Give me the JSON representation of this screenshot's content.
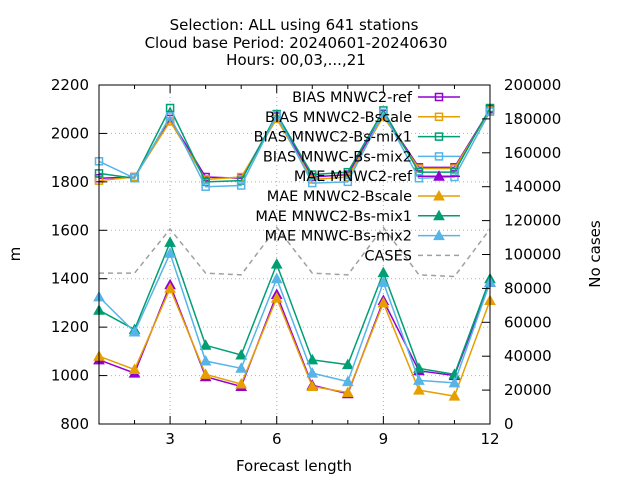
{
  "chart_data": {
    "type": "line",
    "title_lines": [
      "Selection: ALL using   641 stations",
      "Cloud base   Period: 20240601-20240630",
      "Hours: 00,03,...,21"
    ],
    "xlabel": "Forecast length",
    "ylabel": "m",
    "y2label": "No cases",
    "xlim": [
      1,
      12
    ],
    "ylim": [
      800,
      2200
    ],
    "y2lim": [
      0,
      200000
    ],
    "x_ticks": [
      3,
      6,
      9,
      12
    ],
    "y_ticks": [
      800,
      1000,
      1200,
      1400,
      1600,
      1800,
      2000,
      2200
    ],
    "y2_ticks": [
      0,
      20000,
      40000,
      60000,
      80000,
      100000,
      120000,
      140000,
      160000,
      180000,
      200000
    ],
    "grid": true,
    "legend_position": "top-right",
    "x": [
      1,
      2,
      3,
      4,
      5,
      6,
      7,
      8,
      9,
      10,
      11,
      12
    ],
    "series": [
      {
        "name": "BIAS MNWC2-ref",
        "axis": "y1",
        "color": "#9400d3",
        "marker": "square-open",
        "values": [
          1815,
          1820,
          2060,
          1820,
          1815,
          2070,
          1820,
          1830,
          2080,
          1860,
          1860,
          2100
        ]
      },
      {
        "name": "BIAS MNWC2-Bscale",
        "axis": "y1",
        "color": "#e69f00",
        "marker": "square-open",
        "values": [
          1805,
          1820,
          2050,
          1810,
          1820,
          2060,
          1810,
          1820,
          2070,
          1855,
          1855,
          2095
        ]
      },
      {
        "name": "BIAS MNWC2-Bs-mix1",
        "axis": "y1",
        "color": "#009e73",
        "marker": "square-open",
        "values": [
          1835,
          1815,
          2105,
          1800,
          1805,
          2080,
          1830,
          1840,
          2095,
          1840,
          1840,
          2105
        ]
      },
      {
        "name": "BIAS MNWC-Bs-mix2",
        "axis": "y1",
        "color": "#56b4e9",
        "marker": "square-open",
        "values": [
          1885,
          1815,
          2070,
          1780,
          1785,
          2075,
          1795,
          1800,
          2085,
          1815,
          1820,
          2090
        ]
      },
      {
        "name": "MAE MNWC2-ref",
        "axis": "y1",
        "color": "#9400d3",
        "marker": "triangle",
        "values": [
          1065,
          1010,
          1375,
          995,
          955,
          1335,
          960,
          925,
          1310,
          1020,
          1000,
          1385
        ]
      },
      {
        "name": "MAE MNWC2-Bscale",
        "axis": "y1",
        "color": "#e69f00",
        "marker": "triangle",
        "values": [
          1080,
          1025,
          1360,
          1005,
          965,
          1320,
          955,
          930,
          1300,
          940,
          915,
          1310
        ]
      },
      {
        "name": "MAE MNWC2-Bs-mix1",
        "axis": "y1",
        "color": "#009e73",
        "marker": "triangle",
        "values": [
          1270,
          1190,
          1550,
          1125,
          1085,
          1460,
          1065,
          1045,
          1425,
          1030,
          1005,
          1400
        ]
      },
      {
        "name": "MAE MNWC-Bs-mix2",
        "axis": "y1",
        "color": "#56b4e9",
        "marker": "triangle",
        "values": [
          1325,
          1180,
          1505,
          1060,
          1030,
          1400,
          1010,
          975,
          1385,
          980,
          970,
          1385
        ]
      },
      {
        "name": "CASES",
        "axis": "y2",
        "color": "#a0a0a0",
        "marker": "none",
        "dashed": true,
        "values": [
          89000,
          89000,
          115000,
          89000,
          88000,
          116000,
          89000,
          88000,
          116000,
          88000,
          87000,
          115000
        ]
      }
    ]
  }
}
